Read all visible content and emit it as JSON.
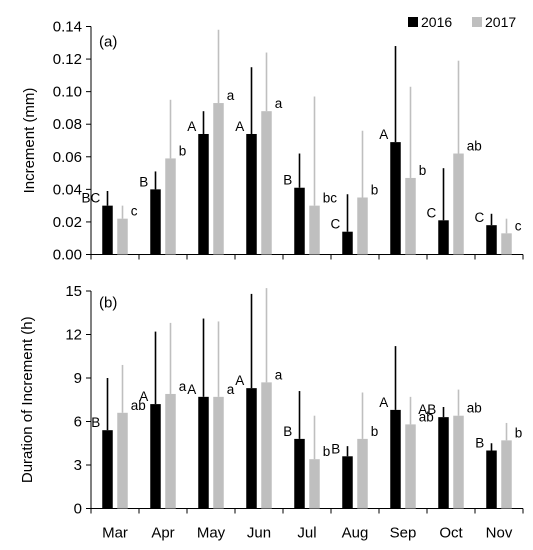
{
  "chart_data": [
    {
      "type": "bar",
      "panel_label": "(a)",
      "ylabel": "Increment (mm)",
      "xlabel": "",
      "ylim": [
        0,
        0.14
      ],
      "yticks": [
        "0.00",
        "0.02",
        "0.04",
        "0.06",
        "0.08",
        "0.10",
        "0.12",
        "0.14"
      ],
      "categories": [
        "Mar",
        "Apr",
        "May",
        "Jun",
        "Jul",
        "Aug",
        "Sep",
        "Oct",
        "Nov"
      ],
      "legend_position": "top-right",
      "series": [
        {
          "name": "2016",
          "color": "#000000",
          "values": [
            0.03,
            0.04,
            0.074,
            0.074,
            0.041,
            0.014,
            0.069,
            0.021,
            0.018
          ],
          "error_top": [
            0.039,
            0.051,
            0.088,
            0.115,
            0.062,
            0.037,
            0.128,
            0.053,
            0.025
          ],
          "letters": [
            "BC",
            "B",
            "A",
            "A",
            "B",
            "C",
            "A",
            "C",
            "C"
          ]
        },
        {
          "name": "2017",
          "color": "#bfbfbf",
          "values": [
            0.022,
            0.059,
            0.093,
            0.088,
            0.03,
            0.035,
            0.047,
            0.062,
            0.013
          ],
          "error_top": [
            0.03,
            0.095,
            0.138,
            0.124,
            0.097,
            0.076,
            0.103,
            0.119,
            0.022
          ],
          "letters": [
            "c",
            "b",
            "a",
            "a",
            "bc",
            "b",
            "b",
            "ab",
            "c"
          ]
        }
      ]
    },
    {
      "type": "bar",
      "panel_label": "(b)",
      "ylabel": "Duration of Increment (h)",
      "xlabel": "",
      "ylim": [
        0,
        15
      ],
      "yticks": [
        "0",
        "3",
        "6",
        "9",
        "12",
        "15"
      ],
      "categories": [
        "Mar",
        "Apr",
        "May",
        "Jun",
        "Jul",
        "Aug",
        "Sep",
        "Oct",
        "Nov"
      ],
      "series": [
        {
          "name": "2016",
          "color": "#000000",
          "values": [
            5.4,
            7.2,
            7.7,
            8.3,
            4.8,
            3.6,
            6.8,
            6.3,
            4.0
          ],
          "error_top": [
            9.0,
            12.2,
            13.1,
            14.8,
            8.1,
            4.3,
            11.2,
            7.0,
            4.5
          ],
          "letters": [
            "B",
            "A",
            "A",
            "A",
            "B",
            "B",
            "A",
            "AB",
            "B"
          ]
        },
        {
          "name": "2017",
          "color": "#bfbfbf",
          "values": [
            6.6,
            7.9,
            7.7,
            8.7,
            3.4,
            4.8,
            5.8,
            6.4,
            4.7
          ],
          "error_top": [
            9.9,
            12.8,
            12.9,
            15.2,
            6.4,
            8.0,
            7.7,
            8.2,
            5.9
          ],
          "letters": [
            "ab",
            "a",
            "a",
            "a",
            "b",
            "b",
            "ab",
            "ab",
            "b"
          ]
        }
      ]
    }
  ]
}
